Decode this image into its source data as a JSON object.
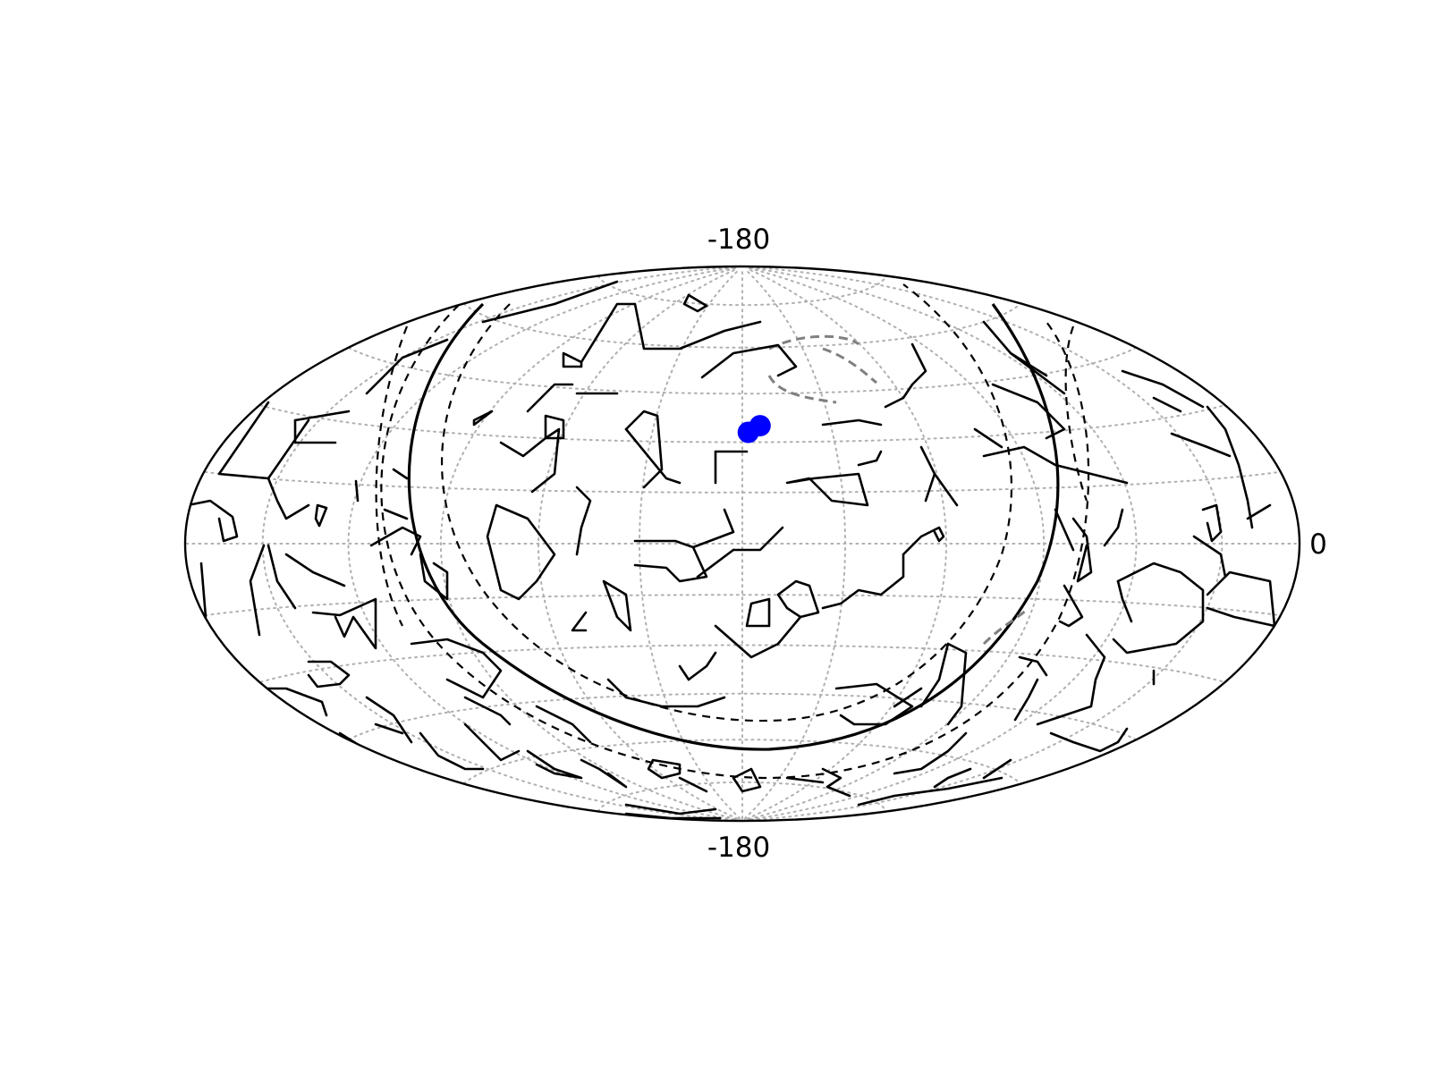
{
  "map": {
    "projection": "hammer",
    "top_label": "-180",
    "bottom_label": "-180",
    "right_label": "0",
    "colors": {
      "outline": "#000000",
      "graticule": "#b0b0b0",
      "points": "#0000ff",
      "secondary_curve": "#808080"
    },
    "points": [
      {
        "lon": -178,
        "lat": 33
      },
      {
        "lon": -174,
        "lat": 35
      }
    ]
  }
}
